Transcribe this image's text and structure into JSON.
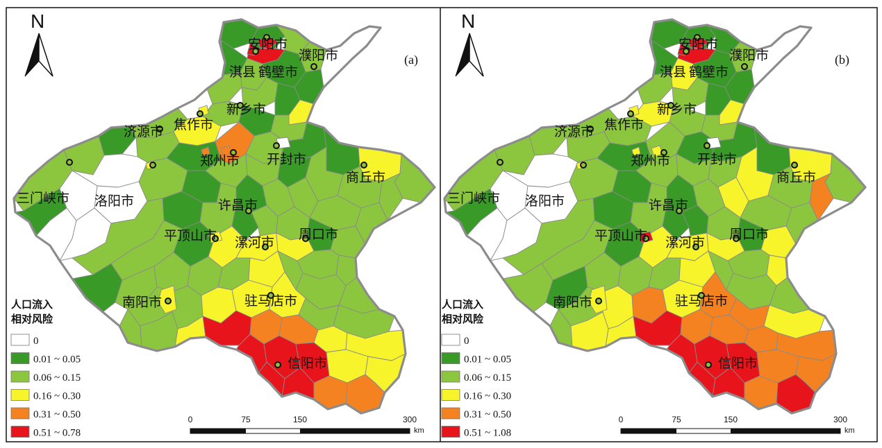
{
  "colors": {
    "zero": "#ffffff",
    "c1": "#3a9a28",
    "c2": "#8cc63f",
    "c3": "#f8f42c",
    "c4": "#f58220",
    "c5": "#e8141c",
    "border": "#8c8c8c"
  },
  "panels": [
    {
      "tag": "(a)",
      "north_label": "N",
      "legend": {
        "title_line1": "人口流入",
        "title_line2": "相对风险",
        "classes": [
          {
            "label": "0",
            "color": "#ffffff"
          },
          {
            "label": "0.01 ~ 0.05",
            "color": "#3a9a28"
          },
          {
            "label": "0.06 ~ 0.15",
            "color": "#8cc63f"
          },
          {
            "label": "0.16 ~ 0.30",
            "color": "#f8f42c"
          },
          {
            "label": "0.31 ~ 0.50",
            "color": "#f58220"
          },
          {
            "label": "0.51 ~ 0.78",
            "color": "#e8141c"
          }
        ]
      },
      "scale": {
        "ticks": [
          "0",
          "75",
          "150",
          "300"
        ],
        "unit": "km"
      }
    },
    {
      "tag": "(b)",
      "north_label": "N",
      "legend": {
        "title_line1": "人口流入",
        "title_line2": "相对风险",
        "classes": [
          {
            "label": "0",
            "color": "#ffffff"
          },
          {
            "label": "0.01 ~ 0.05",
            "color": "#3a9a28"
          },
          {
            "label": "0.06 ~ 0.15",
            "color": "#8cc63f"
          },
          {
            "label": "0.16 ~ 0.30",
            "color": "#f8f42c"
          },
          {
            "label": "0.31 ~ 0.50",
            "color": "#f58220"
          },
          {
            "label": "0.51 ~ 1.08",
            "color": "#e8141c"
          }
        ]
      },
      "scale": {
        "ticks": [
          "0",
          "75",
          "150",
          "300"
        ],
        "unit": "km"
      }
    }
  ],
  "cities": [
    {
      "name": "安阳市"
    },
    {
      "name": "濮阳市"
    },
    {
      "name": "淇县"
    },
    {
      "name": "鹤壁市"
    },
    {
      "name": "新乡市"
    },
    {
      "name": "济源市"
    },
    {
      "name": "焦作市"
    },
    {
      "name": "郑州市"
    },
    {
      "name": "开封市"
    },
    {
      "name": "商丘市"
    },
    {
      "name": "三门峡市"
    },
    {
      "name": "洛阳市"
    },
    {
      "name": "许昌市"
    },
    {
      "name": "平顶山市"
    },
    {
      "name": "漯河市"
    },
    {
      "name": "周口市"
    },
    {
      "name": "南阳市"
    },
    {
      "name": "驻马店市"
    },
    {
      "name": "信阳市"
    }
  ]
}
